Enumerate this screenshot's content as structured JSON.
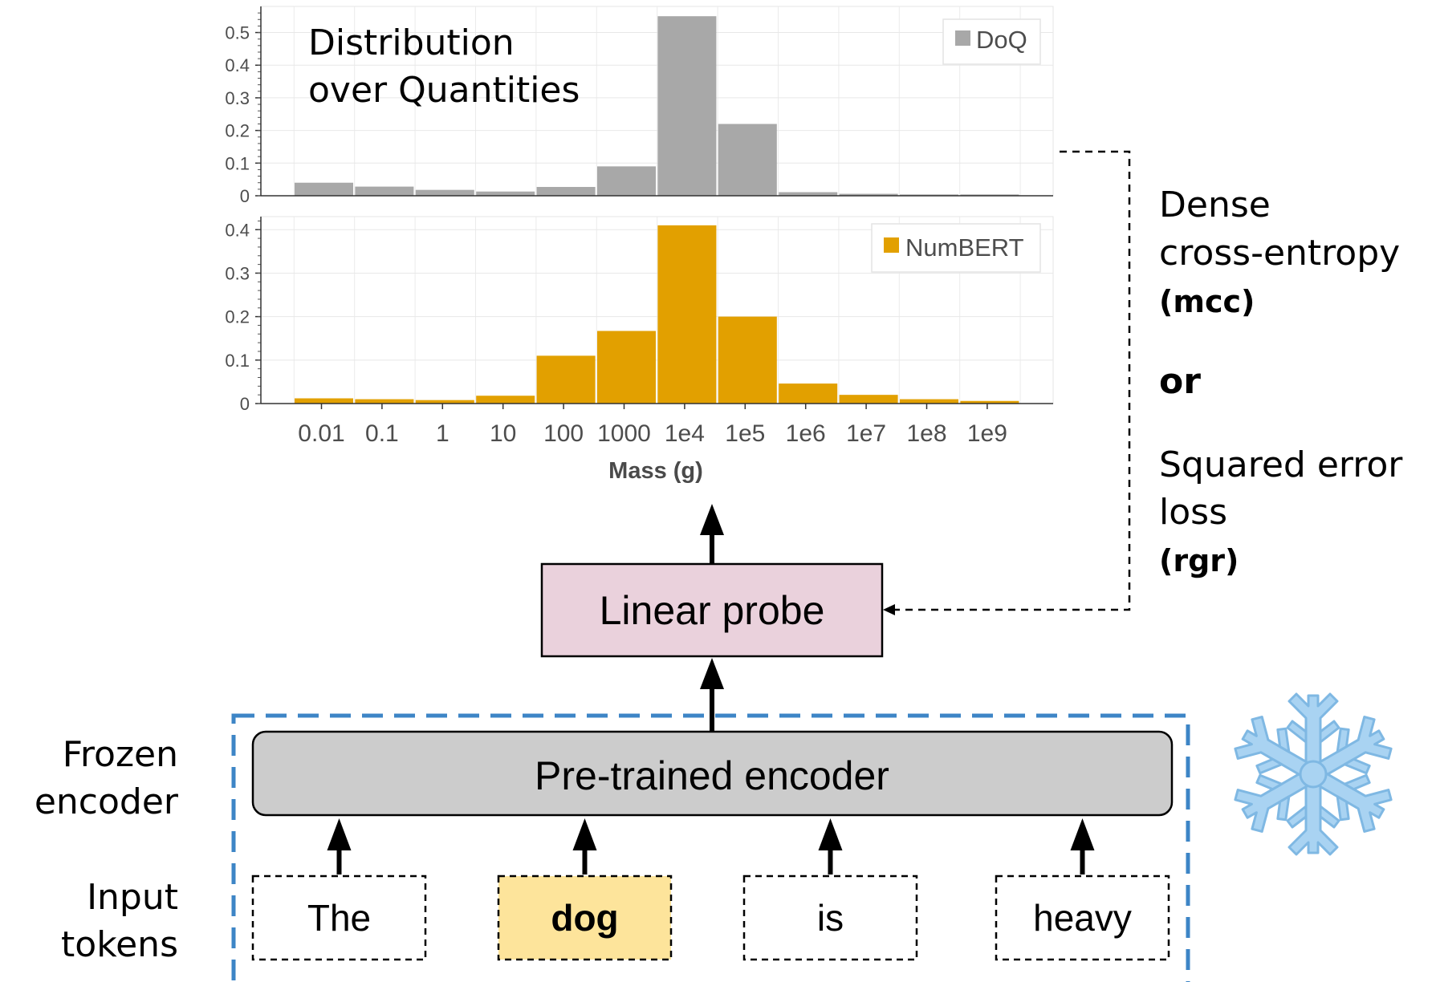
{
  "chart_data": [
    {
      "type": "bar",
      "title": "Distribution over Quantities",
      "title_lines": [
        "Distribution",
        "over Quantities"
      ],
      "legend": "DoQ",
      "legend_position": "top-right",
      "color": "#a8a8a8",
      "xlabel": "Mass (g)",
      "ylim": [
        0,
        0.58
      ],
      "yticks": [
        "0",
        "0.1",
        "0.2",
        "0.3",
        "0.4",
        "0.5"
      ],
      "ytick_values": [
        0,
        0.1,
        0.2,
        0.3,
        0.4,
        0.5
      ],
      "values": [
        0.04,
        0.028,
        0.018,
        0.013,
        0.027,
        0.09,
        0.55,
        0.22,
        0.011,
        0.006,
        0.004,
        0.004
      ],
      "grid": true
    },
    {
      "type": "bar",
      "legend": "NumBERT",
      "legend_position": "top-right",
      "color": "#e2a000",
      "xlabel": "Mass (g)",
      "ylim": [
        0,
        0.43
      ],
      "yticks": [
        "0",
        "0.1",
        "0.2",
        "0.3",
        "0.4"
      ],
      "ytick_values": [
        0,
        0.1,
        0.2,
        0.3,
        0.4
      ],
      "values": [
        0.012,
        0.01,
        0.008,
        0.018,
        0.11,
        0.167,
        0.41,
        0.2,
        0.046,
        0.02,
        0.01,
        0.006
      ],
      "grid": true
    }
  ],
  "x_ticks": [
    "0.01",
    "0.1",
    "1",
    "10",
    "100",
    "1000",
    "1e4",
    "1e5",
    "1e6",
    "1e7",
    "1e8",
    "1e9"
  ],
  "x_axis_label": "Mass (g)",
  "loss": {
    "line1": "Dense",
    "line2": "cross-entropy",
    "mcc": "(mcc)",
    "or": "or",
    "line3": "Squared error",
    "line4": "loss",
    "rgr": "(rgr)"
  },
  "probe_label": "Linear probe",
  "encoder_label": "Pre-trained encoder",
  "frozen_label": [
    "Frozen",
    "encoder"
  ],
  "input_label": [
    "Input",
    "tokens"
  ],
  "tokens": [
    {
      "text": "The",
      "highlight": false
    },
    {
      "text": "dog",
      "highlight": true
    },
    {
      "text": "is",
      "highlight": false
    },
    {
      "text": "heavy",
      "highlight": false
    }
  ],
  "colors": {
    "probe_fill": "#ead1dc",
    "encoder_fill": "#cccccc",
    "highlight_fill": "#fde49b",
    "frozen_border": "#3d85c6",
    "snowflake": "#a9d3f2",
    "snowflake_stroke": "#7fb8e3"
  },
  "icons": {
    "frozen": "snowflake-icon"
  }
}
